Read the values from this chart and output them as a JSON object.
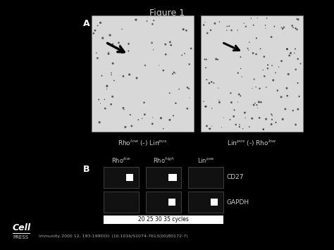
{
  "title": "Figure 1",
  "background_color": "#000000",
  "figure_bg": "#000000",
  "panel_bg": "#ffffff",
  "title_fontsize": 9,
  "title_color": "#cccccc",
  "panel_A_label": "A",
  "panel_B_label": "B",
  "label_color": "#ffffff",
  "cd27_label": "CD27",
  "gapdh_label": "GAPDH",
  "cycles_label": "20 25 30 35 cycles",
  "footer_text": "Immunity 2000 12, 193-199DOI: (10.1016/S1074-7613(00)80172-7)"
}
